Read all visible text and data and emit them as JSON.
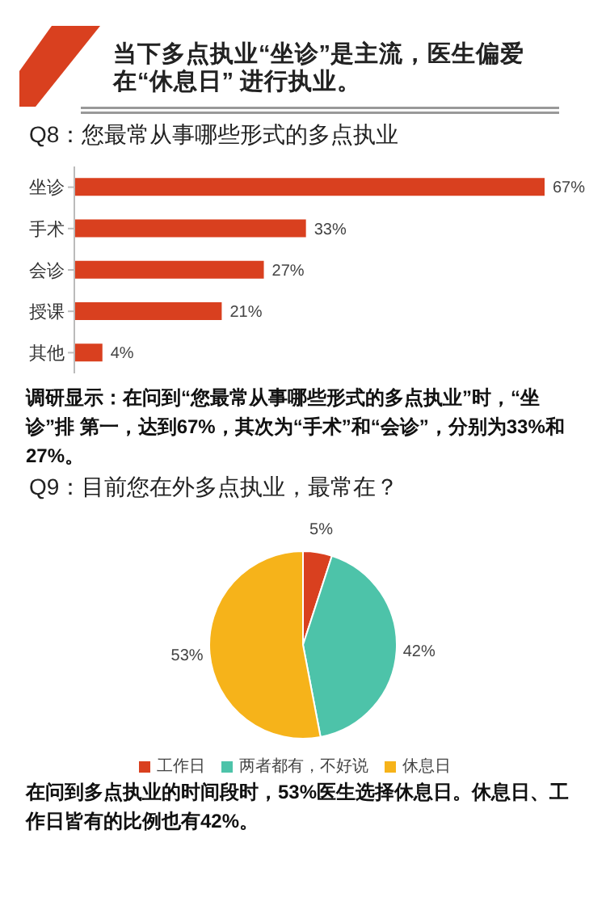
{
  "chart_data": [
    {
      "type": "bar",
      "orientation": "horizontal",
      "title": "当下多点执业“坐诊”是主流，医生偏爱在“休息日” 进行执业。",
      "subtitle": "Q8：您最常从事哪些形式的多点执业",
      "categories": [
        "坐诊",
        "手术",
        "会诊",
        "授课",
        "其他"
      ],
      "values": [
        67,
        33,
        27,
        21,
        4
      ],
      "value_labels": [
        "67%",
        "33%",
        "27%",
        "21%",
        "4%"
      ],
      "color": "#d9401f",
      "annotations": [
        "调研显示：在问到“您最常从事哪些形式的多点执业”时，“坐诊”排 第一，达到67%，其次为“手术”和“会诊”，分别为33%和27%。"
      ]
    },
    {
      "type": "pie",
      "title": "Q9：目前您在外多点执业，最常在？",
      "categories": [
        "工作日",
        "两者都有，不好说",
        "休息日"
      ],
      "values": [
        5,
        42,
        53
      ],
      "value_labels": [
        "5%",
        "42%",
        "53%"
      ],
      "colors": [
        "#d9401f",
        "#4dc3a9",
        "#f6b31a"
      ],
      "legend": "bottom",
      "annotations": [
        "在问到多点执业的时间段时，53%医生选择休息日。休息日、工作日皆有的比例也有42%。"
      ]
    }
  ]
}
